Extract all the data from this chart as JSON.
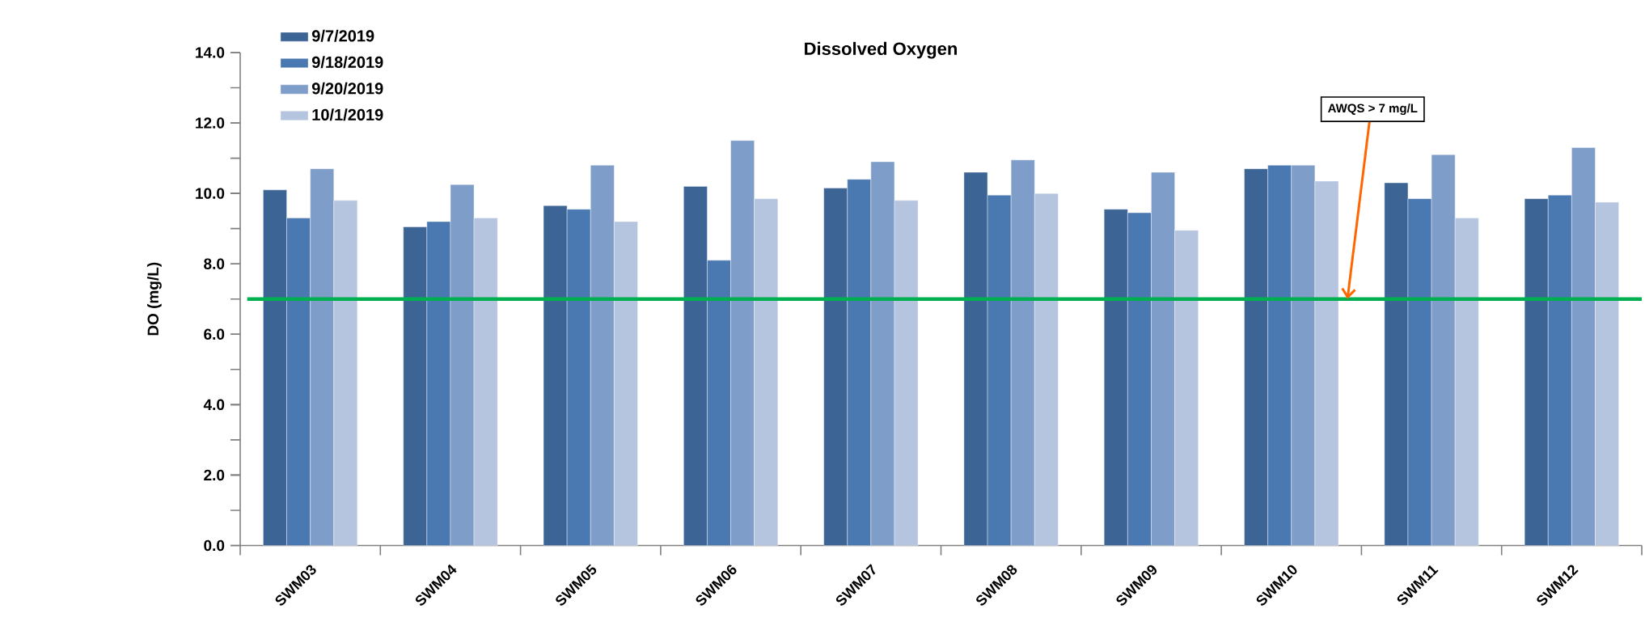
{
  "chart_data": {
    "type": "bar",
    "title": "Dissolved Oxygen",
    "ylabel": "DO (mg/L)",
    "categories": [
      "SWM03",
      "SWM04",
      "SWM05",
      "SWM06",
      "SWM07",
      "SWM08",
      "SWM09",
      "SWM10",
      "SWM11",
      "SWM12"
    ],
    "series": [
      {
        "name": "9/7/2019",
        "color": "#3c6494",
        "values": [
          10.1,
          9.05,
          9.65,
          10.2,
          10.15,
          10.6,
          9.55,
          10.7,
          10.3,
          9.85
        ]
      },
      {
        "name": "9/18/2019",
        "color": "#4a78b0",
        "values": [
          9.3,
          9.2,
          9.55,
          8.1,
          10.4,
          9.95,
          9.45,
          10.8,
          9.85,
          9.95
        ]
      },
      {
        "name": "9/20/2019",
        "color": "#7f9dc9",
        "values": [
          10.7,
          10.25,
          10.8,
          11.5,
          10.9,
          10.95,
          10.6,
          10.8,
          11.1,
          11.3
        ]
      },
      {
        "name": "10/1/2019",
        "color": "#b5c4df",
        "values": [
          9.8,
          9.3,
          9.2,
          9.85,
          9.8,
          10.0,
          8.95,
          10.35,
          9.3,
          9.75
        ]
      }
    ],
    "ylim": [
      0,
      14
    ],
    "yticks": [
      {
        "value": 0,
        "label": "0.0"
      },
      {
        "value": 2,
        "label": "2.0"
      },
      {
        "value": 4,
        "label": "4.0"
      },
      {
        "value": 6,
        "label": "6.0"
      },
      {
        "value": 8,
        "label": "8.0"
      },
      {
        "value": 10,
        "label": "10.0"
      },
      {
        "value": 12,
        "label": "12.0"
      },
      {
        "value": 14,
        "label": "14.0"
      }
    ],
    "ref_lines": [
      {
        "axis": "y",
        "value": 7,
        "label": "AWQS > 7 mg/L",
        "color": "#00b050"
      }
    ],
    "legend": "top left",
    "grid": false
  }
}
